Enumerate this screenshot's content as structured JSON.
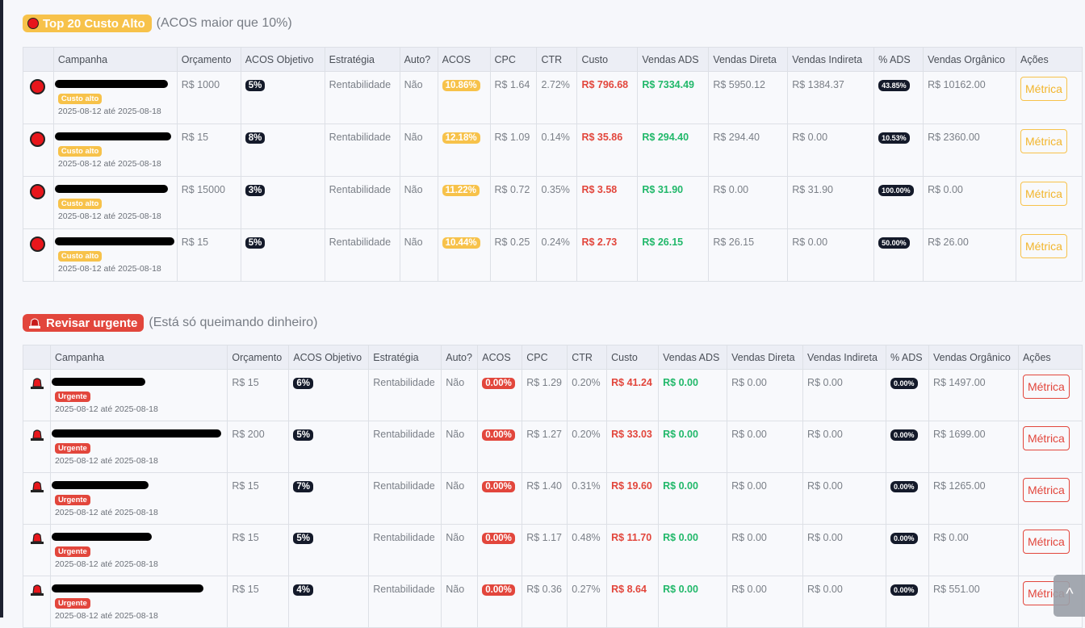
{
  "section1": {
    "title": "Top 20 Custo Alto",
    "subtitle": "(ACOS maior que 10%)",
    "color": "#f7c24a",
    "headers": [
      "",
      "Campanha",
      "Orçamento",
      "ACOS Objetivo",
      "Estratégia",
      "Auto?",
      "ACOS",
      "CPC",
      "CTR",
      "Custo",
      "Vendas ADS",
      "Vendas Direta",
      "Vendas Indireta",
      "% ADS",
      "Vendas Orgânico",
      "Ações"
    ],
    "tag": "Custo alto",
    "rows": [
      {
        "dates": "2025-08-12 até 2025-08-18",
        "budget": "R$ 1000",
        "acos_obj": "5%",
        "strategy": "Rentabilidade",
        "auto": "Não",
        "acos": "10.86%",
        "cpc": "R$ 1.64",
        "ctr": "2.72%",
        "cost": "R$ 796.68",
        "sales_ads": "R$ 7334.49",
        "sales_direct": "R$ 5950.12",
        "sales_indirect": "R$ 1384.37",
        "pct_ads": "43.85%",
        "sales_organic": "R$ 10162.00",
        "action": "Métrica"
      },
      {
        "dates": "2025-08-12 até 2025-08-18",
        "budget": "R$ 15",
        "acos_obj": "8%",
        "strategy": "Rentabilidade",
        "auto": "Não",
        "acos": "12.18%",
        "cpc": "R$ 1.09",
        "ctr": "0.14%",
        "cost": "R$ 35.86",
        "sales_ads": "R$ 294.40",
        "sales_direct": "R$ 294.40",
        "sales_indirect": "R$ 0.00",
        "pct_ads": "10.53%",
        "sales_organic": "R$ 2360.00",
        "action": "Métrica"
      },
      {
        "dates": "2025-08-12 até 2025-08-18",
        "budget": "R$ 15000",
        "acos_obj": "3%",
        "strategy": "Rentabilidade",
        "auto": "Não",
        "acos": "11.22%",
        "cpc": "R$ 0.72",
        "ctr": "0.35%",
        "cost": "R$ 3.58",
        "sales_ads": "R$ 31.90",
        "sales_direct": "R$ 0.00",
        "sales_indirect": "R$ 31.90",
        "pct_ads": "100.00%",
        "sales_organic": "R$ 0.00",
        "action": "Métrica"
      },
      {
        "dates": "2025-08-12 até 2025-08-18",
        "budget": "R$ 15",
        "acos_obj": "5%",
        "strategy": "Rentabilidade",
        "auto": "Não",
        "acos": "10.44%",
        "cpc": "R$ 0.25",
        "ctr": "0.24%",
        "cost": "R$ 2.73",
        "sales_ads": "R$ 26.15",
        "sales_direct": "R$ 26.15",
        "sales_indirect": "R$ 0.00",
        "pct_ads": "50.00%",
        "sales_organic": "R$ 26.00",
        "action": "Métrica"
      }
    ]
  },
  "section2": {
    "title": "Revisar urgente",
    "subtitle": "(Está só queimando dinheiro)",
    "color": "#e2463c",
    "headers": [
      "",
      "Campanha",
      "Orçamento",
      "ACOS Objetivo",
      "Estratégia",
      "Auto?",
      "ACOS",
      "CPC",
      "CTR",
      "Custo",
      "Vendas ADS",
      "Vendas Direta",
      "Vendas Indireta",
      "% ADS",
      "Vendas Orgânico",
      "Ações"
    ],
    "tag": "Urgente",
    "rows": [
      {
        "dates": "2025-08-12 até 2025-08-18",
        "budget": "R$ 15",
        "acos_obj": "6%",
        "strategy": "Rentabilidade",
        "auto": "Não",
        "acos": "0.00%",
        "cpc": "R$ 1.29",
        "ctr": "0.20%",
        "cost": "R$ 41.24",
        "sales_ads": "R$ 0.00",
        "sales_direct": "R$ 0.00",
        "sales_indirect": "R$ 0.00",
        "pct_ads": "0.00%",
        "sales_organic": "R$ 1497.00",
        "action": "Métrica"
      },
      {
        "dates": "2025-08-12 até 2025-08-18",
        "budget": "R$ 200",
        "acos_obj": "5%",
        "strategy": "Rentabilidade",
        "auto": "Não",
        "acos": "0.00%",
        "cpc": "R$ 1.27",
        "ctr": "0.20%",
        "cost": "R$ 33.03",
        "sales_ads": "R$ 0.00",
        "sales_direct": "R$ 0.00",
        "sales_indirect": "R$ 0.00",
        "pct_ads": "0.00%",
        "sales_organic": "R$ 1699.00",
        "action": "Métrica"
      },
      {
        "dates": "2025-08-12 até 2025-08-18",
        "budget": "R$ 15",
        "acos_obj": "7%",
        "strategy": "Rentabilidade",
        "auto": "Não",
        "acos": "0.00%",
        "cpc": "R$ 1.40",
        "ctr": "0.31%",
        "cost": "R$ 19.60",
        "sales_ads": "R$ 0.00",
        "sales_direct": "R$ 0.00",
        "sales_indirect": "R$ 0.00",
        "pct_ads": "0.00%",
        "sales_organic": "R$ 1265.00",
        "action": "Métrica"
      },
      {
        "dates": "2025-08-12 até 2025-08-18",
        "budget": "R$ 15",
        "acos_obj": "5%",
        "strategy": "Rentabilidade",
        "auto": "Não",
        "acos": "0.00%",
        "cpc": "R$ 1.17",
        "ctr": "0.48%",
        "cost": "R$ 11.70",
        "sales_ads": "R$ 0.00",
        "sales_direct": "R$ 0.00",
        "sales_indirect": "R$ 0.00",
        "pct_ads": "0.00%",
        "sales_organic": "R$ 0.00",
        "action": "Métrica"
      },
      {
        "dates": "2025-08-12 até 2025-08-18",
        "budget": "R$ 15",
        "acos_obj": "4%",
        "strategy": "Rentabilidade",
        "auto": "Não",
        "acos": "0.00%",
        "cpc": "R$ 0.36",
        "ctr": "0.27%",
        "cost": "R$ 8.64",
        "sales_ads": "R$ 0.00",
        "sales_direct": "R$ 0.00",
        "sales_indirect": "R$ 0.00",
        "pct_ads": "0.00%",
        "sales_organic": "R$ 551.00",
        "action": "Métrica"
      }
    ]
  },
  "icons": {
    "section1": "red-circle-icon",
    "section2": "siren-icon",
    "scroll": "chevron-up-icon"
  },
  "scroll_top": {
    "glyph": "^"
  }
}
